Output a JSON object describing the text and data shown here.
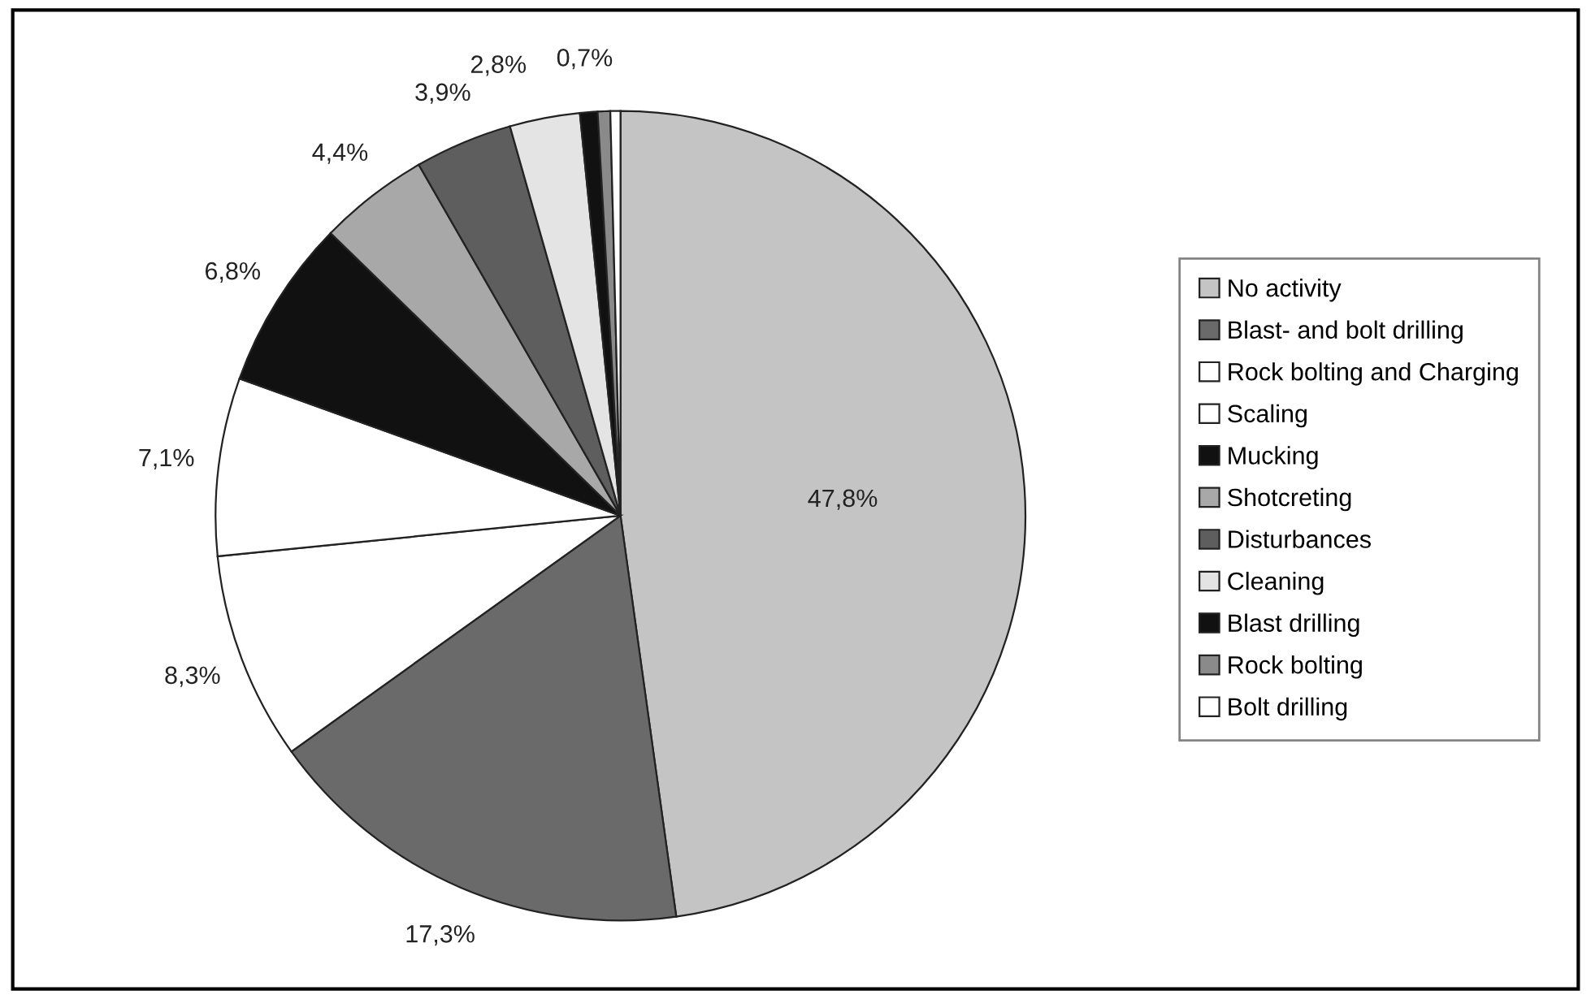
{
  "chart_data": {
    "type": "pie",
    "categories": [
      "No activity",
      "Blast- and bolt drilling",
      "Rock bolting and Charging",
      "Scaling",
      "Mucking",
      "Shotcreting",
      "Disturbances",
      "Cleaning",
      "Blast drilling",
      "Rock bolting",
      "Bolt drilling"
    ],
    "values": [
      47.8,
      17.3,
      8.3,
      7.1,
      6.8,
      4.4,
      3.9,
      2.8,
      0.7,
      0.5,
      0.4
    ],
    "value_labels": [
      "47,8%",
      "17,3%",
      "8,3%",
      "7,1%",
      "6,8%",
      "4,4%",
      "3,9%",
      "2,8%",
      "0,7%",
      null,
      null
    ],
    "colors": [
      "#c4c4c4",
      "#6a6a6a",
      "#ffffff",
      "#ffffff",
      "#111111",
      "#a8a8a8",
      "#5e5e5e",
      "#e4e4e4",
      "#111111",
      "#8a8a8a",
      "#ffffff"
    ],
    "legend": "right"
  }
}
